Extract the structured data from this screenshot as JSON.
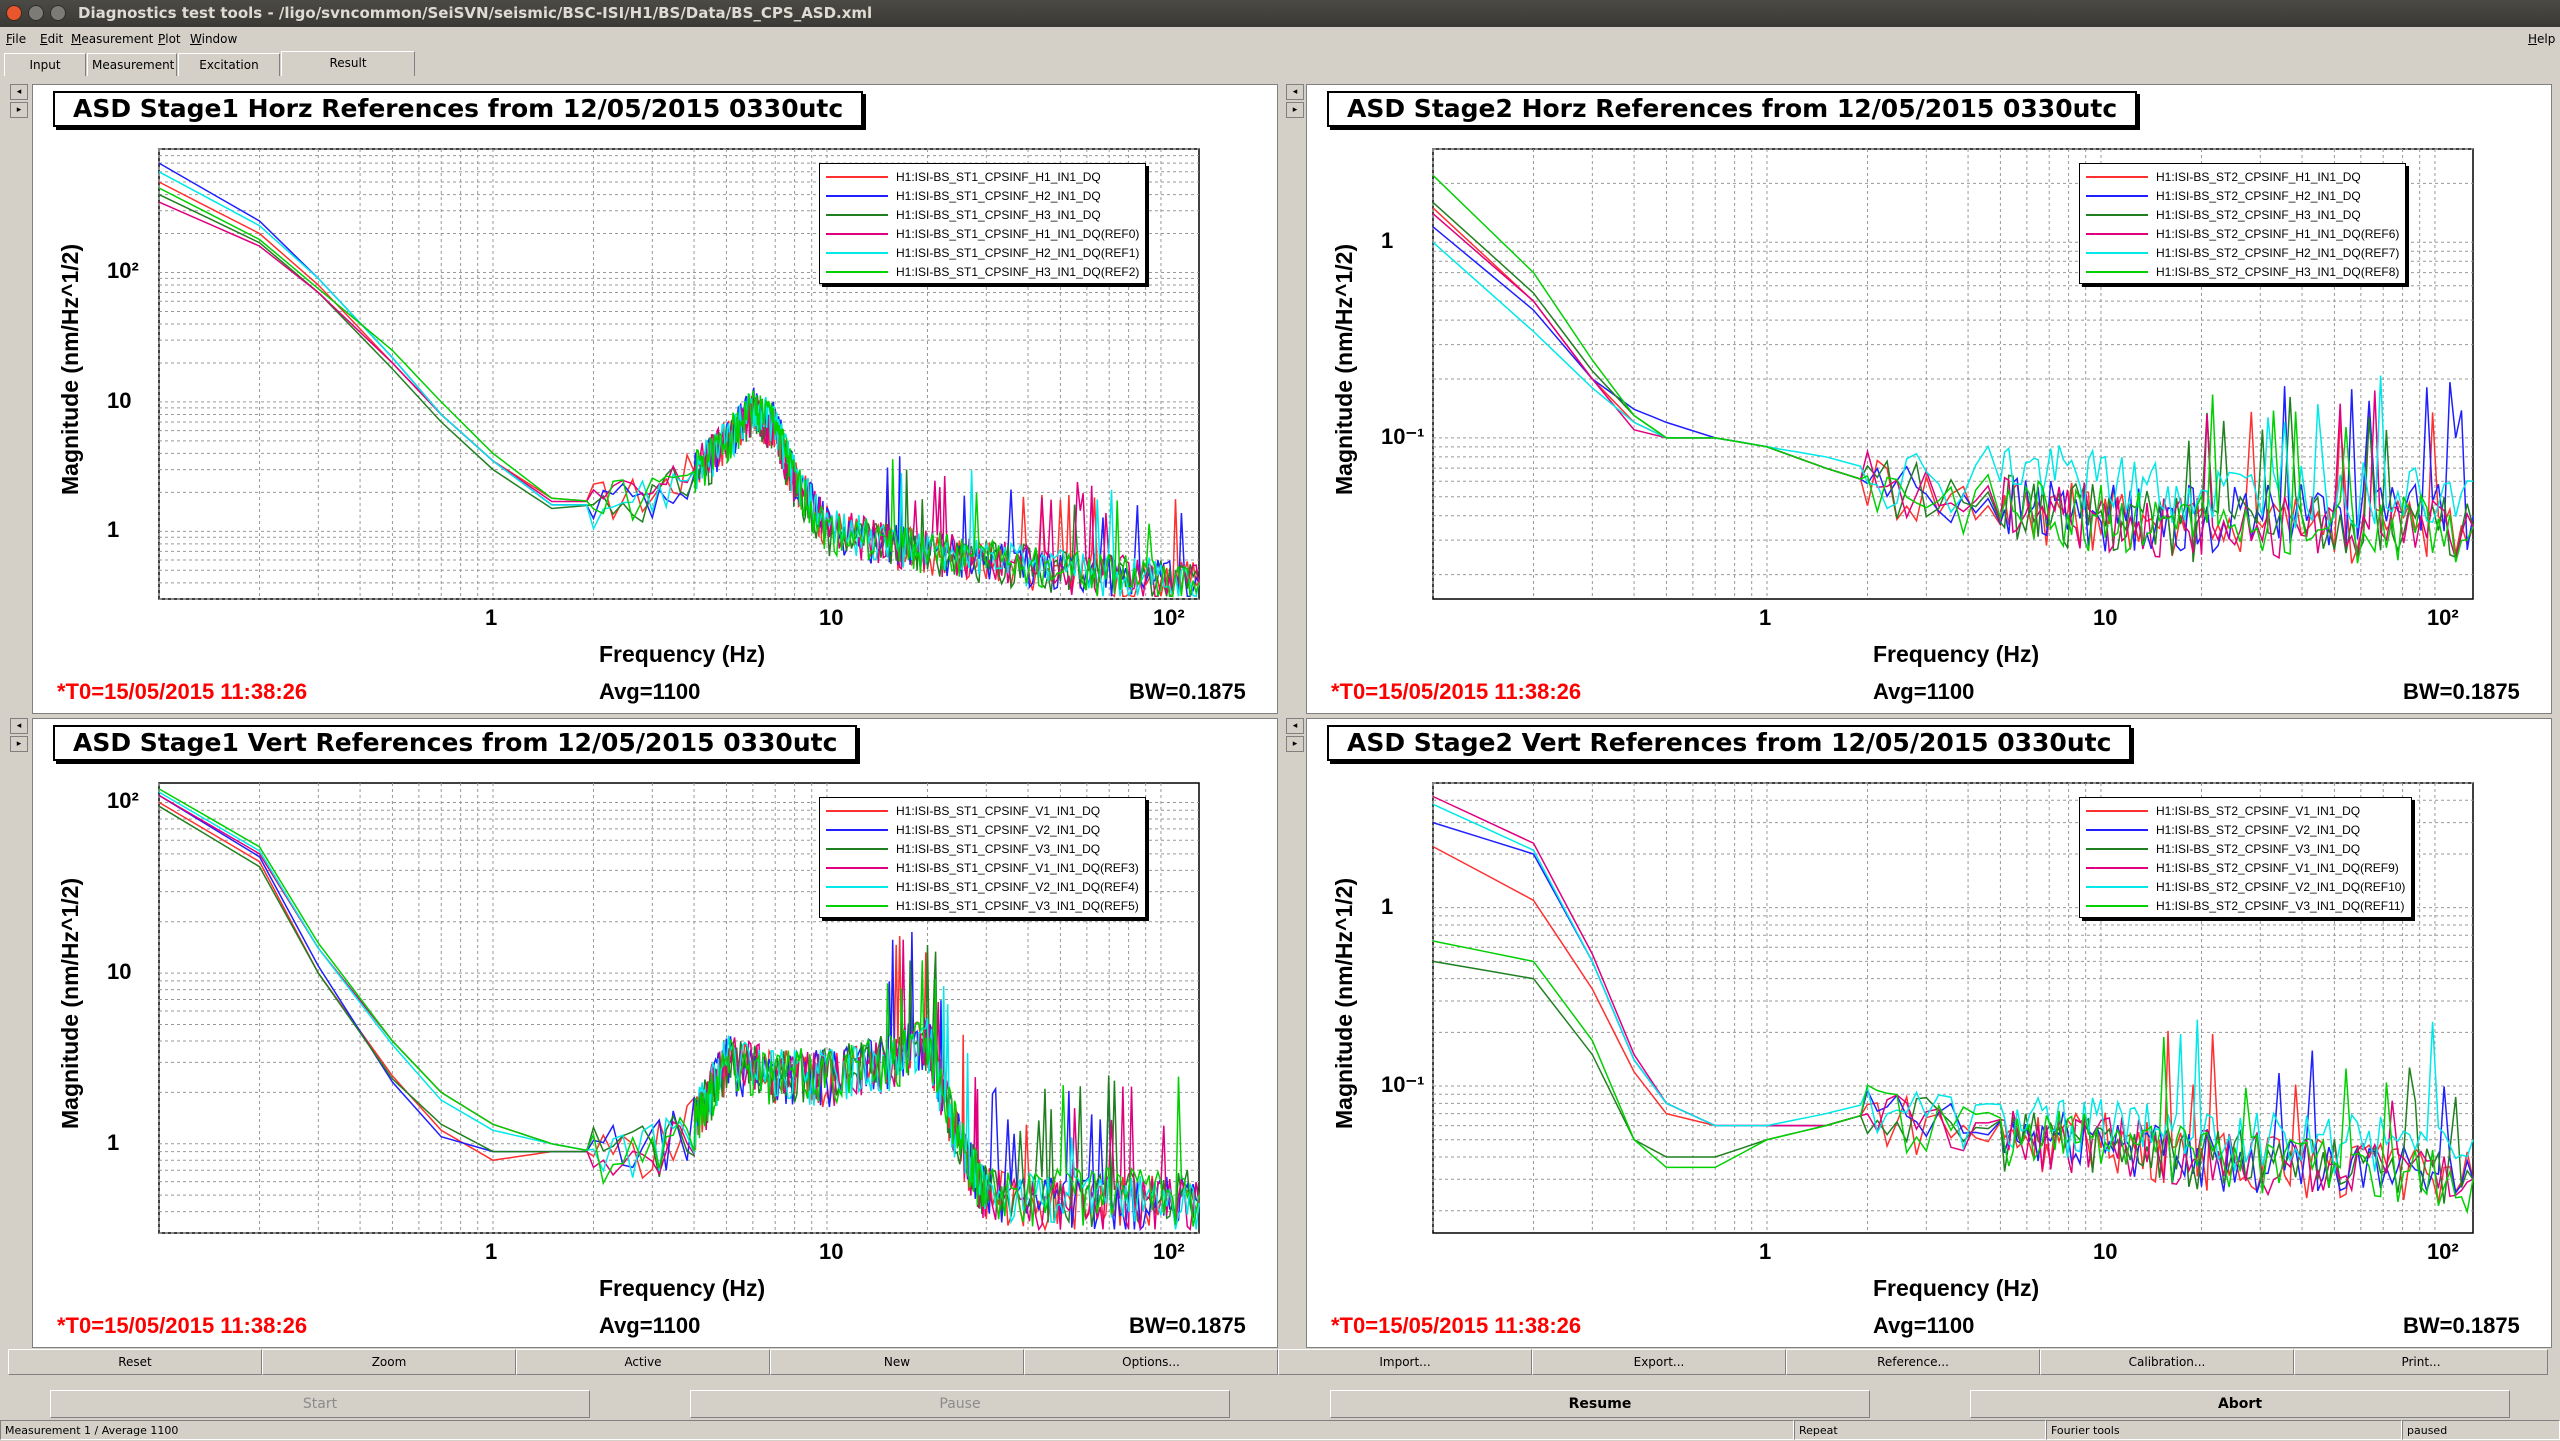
{
  "window": {
    "title": "Diagnostics test tools - /ligo/svncommon/SeiSVN/seismic/BSC-ISI/H1/BS/Data/BS_CPS_ASD.xml"
  },
  "menu": {
    "file": "File",
    "edit": "Edit",
    "measurement": "Measurement",
    "plot": "Plot",
    "window": "Window",
    "help": "Help"
  },
  "tabs": [
    {
      "label": "Input"
    },
    {
      "label": "Measurement"
    },
    {
      "label": "Excitation"
    },
    {
      "label": "Result"
    }
  ],
  "plots": [
    {
      "title": "ASD Stage1 Horz References from 12/05/2015 0330utc",
      "ylabel": "Magnitude (nm/Hz^1/2)",
      "xlabel": "Frequency (Hz)",
      "yticks": [
        "10²",
        "10",
        "1"
      ],
      "xticks": [
        "1",
        "10",
        "10²"
      ],
      "t0": "*T0=15/05/2015 11:38:26",
      "avg": "Avg=1100",
      "bw": "BW=0.1875",
      "legend": [
        "H1:ISI-BS_ST1_CPSINF_H1_IN1_DQ",
        "H1:ISI-BS_ST1_CPSINF_H2_IN1_DQ",
        "H1:ISI-BS_ST1_CPSINF_H3_IN1_DQ",
        "H1:ISI-BS_ST1_CPSINF_H1_IN1_DQ(REF0)",
        "H1:ISI-BS_ST1_CPSINF_H2_IN1_DQ(REF1)",
        "H1:ISI-BS_ST1_CPSINF_H3_IN1_DQ(REF2)"
      ]
    },
    {
      "title": "ASD Stage2 Horz References from 12/05/2015 0330utc",
      "ylabel": "Magnitude (nm/Hz^1/2)",
      "xlabel": "Frequency (Hz)",
      "yticks": [
        "1",
        "10⁻¹"
      ],
      "xticks": [
        "1",
        "10",
        "10²"
      ],
      "t0": "*T0=15/05/2015 11:38:26",
      "avg": "Avg=1100",
      "bw": "BW=0.1875",
      "legend": [
        "H1:ISI-BS_ST2_CPSINF_H1_IN1_DQ",
        "H1:ISI-BS_ST2_CPSINF_H2_IN1_DQ",
        "H1:ISI-BS_ST2_CPSINF_H3_IN1_DQ",
        "H1:ISI-BS_ST2_CPSINF_H1_IN1_DQ(REF6)",
        "H1:ISI-BS_ST2_CPSINF_H2_IN1_DQ(REF7)",
        "H1:ISI-BS_ST2_CPSINF_H3_IN1_DQ(REF8)"
      ]
    },
    {
      "title": "ASD Stage1 Vert References from 12/05/2015 0330utc",
      "ylabel": "Magnitude (nm/Hz^1/2)",
      "xlabel": "Frequency (Hz)",
      "yticks": [
        "10²",
        "10",
        "1"
      ],
      "xticks": [
        "1",
        "10",
        "10²"
      ],
      "t0": "*T0=15/05/2015 11:38:26",
      "avg": "Avg=1100",
      "bw": "BW=0.1875",
      "legend": [
        "H1:ISI-BS_ST1_CPSINF_V1_IN1_DQ",
        "H1:ISI-BS_ST1_CPSINF_V2_IN1_DQ",
        "H1:ISI-BS_ST1_CPSINF_V3_IN1_DQ",
        "H1:ISI-BS_ST1_CPSINF_V1_IN1_DQ(REF3)",
        "H1:ISI-BS_ST1_CPSINF_V2_IN1_DQ(REF4)",
        "H1:ISI-BS_ST1_CPSINF_V3_IN1_DQ(REF5)"
      ]
    },
    {
      "title": "ASD Stage2 Vert References from 12/05/2015 0330utc",
      "ylabel": "Magnitude (nm/Hz^1/2)",
      "xlabel": "Frequency (Hz)",
      "yticks": [
        "1",
        "10⁻¹"
      ],
      "xticks": [
        "1",
        "10",
        "10²"
      ],
      "t0": "*T0=15/05/2015 11:38:26",
      "avg": "Avg=1100",
      "bw": "BW=0.1875",
      "legend": [
        "H1:ISI-BS_ST2_CPSINF_V1_IN1_DQ",
        "H1:ISI-BS_ST2_CPSINF_V2_IN1_DQ",
        "H1:ISI-BS_ST2_CPSINF_V3_IN1_DQ",
        "H1:ISI-BS_ST2_CPSINF_V1_IN1_DQ(REF9)",
        "H1:ISI-BS_ST2_CPSINF_V2_IN1_DQ(REF10)",
        "H1:ISI-BS_ST2_CPSINF_V3_IN1_DQ(REF11)"
      ]
    }
  ],
  "series_colors": [
    "#ff3030",
    "#2020ff",
    "#208020",
    "#e0007f",
    "#00e8e8",
    "#00d000"
  ],
  "toolbar": {
    "reset": "Reset",
    "zoom": "Zoom",
    "active": "Active",
    "new": "New",
    "options": "Options...",
    "import": "Import...",
    "export": "Export...",
    "reference": "Reference...",
    "calibration": "Calibration...",
    "print": "Print..."
  },
  "controls": {
    "start": "Start",
    "pause": "Pause",
    "resume": "Resume",
    "abort": "Abort"
  },
  "status": {
    "measurement": "Measurement 1 / Average 1100",
    "repeat": "Repeat",
    "fourier": "Fourier tools",
    "state": "paused"
  },
  "chart_data": [
    {
      "type": "line",
      "title": "ASD Stage1 Horz References from 12/05/2015 0330utc",
      "xscale": "log",
      "yscale": "log",
      "xlim": [
        0.1,
        130
      ],
      "ylim": [
        0.3,
        900
      ],
      "xlabel": "Frequency (Hz)",
      "ylabel": "Magnitude (nm/Hz^1/2)",
      "grid": true,
      "legend": "top-right",
      "x": [
        0.1,
        0.2,
        0.3,
        0.5,
        0.7,
        1.0,
        1.5,
        2,
        3,
        4,
        5,
        6,
        7,
        8,
        10,
        15,
        20,
        30,
        50,
        80,
        130
      ],
      "series": [
        {
          "name": "H1:ISI-BS_ST1_CPSINF_H1_IN1_DQ",
          "values": [
            500,
            200,
            80,
            20,
            8,
            3.5,
            1.8,
            1.7,
            1.9,
            3,
            5,
            8,
            6,
            2.5,
            1.1,
            0.8,
            0.7,
            0.6,
            0.5,
            0.45,
            0.4
          ]
        },
        {
          "name": "H1:ISI-BS_ST1_CPSINF_H2_IN1_DQ",
          "values": [
            700,
            250,
            90,
            22,
            8,
            3.5,
            1.6,
            1.6,
            1.8,
            2.8,
            5,
            9,
            7,
            2.6,
            1.1,
            0.8,
            0.7,
            0.6,
            0.5,
            0.45,
            0.4
          ]
        },
        {
          "name": "H1:ISI-BS_ST1_CPSINF_H3_IN1_DQ",
          "values": [
            400,
            170,
            70,
            18,
            7,
            3,
            1.5,
            1.6,
            1.8,
            2.6,
            4.5,
            8,
            6,
            2.2,
            1.0,
            0.8,
            0.7,
            0.6,
            0.5,
            0.45,
            0.4
          ]
        },
        {
          "name": "H1:ISI-BS_ST1_CPSINF_H1_IN1_DQ(REF0)",
          "values": [
            350,
            160,
            70,
            20,
            8,
            3.5,
            1.7,
            1.7,
            1.9,
            3,
            5,
            8,
            6,
            2.5,
            1.1,
            0.8,
            0.7,
            0.6,
            0.5,
            0.45,
            0.4
          ]
        },
        {
          "name": "H1:ISI-BS_ST1_CPSINF_H2_IN1_DQ(REF1)",
          "values": [
            600,
            230,
            90,
            22,
            8,
            3.5,
            1.6,
            1.6,
            1.8,
            2.8,
            5,
            9,
            7,
            2.6,
            1.1,
            0.8,
            0.7,
            0.6,
            0.5,
            0.45,
            0.4
          ]
        },
        {
          "name": "H1:ISI-BS_ST1_CPSINF_H3_IN1_DQ(REF2)",
          "values": [
            450,
            180,
            75,
            25,
            10,
            4,
            1.8,
            1.7,
            1.9,
            2.8,
            5,
            9,
            7,
            2.4,
            1.0,
            0.8,
            0.7,
            0.6,
            0.5,
            0.45,
            0.4
          ]
        }
      ]
    },
    {
      "type": "line",
      "title": "ASD Stage2 Horz References from 12/05/2015 0330utc",
      "xscale": "log",
      "yscale": "log",
      "xlim": [
        0.1,
        130
      ],
      "ylim": [
        0.015,
        3
      ],
      "xlabel": "Frequency (Hz)",
      "ylabel": "Magnitude (nm/Hz^1/2)",
      "grid": true,
      "legend": "top-right",
      "x": [
        0.1,
        0.2,
        0.3,
        0.4,
        0.5,
        0.7,
        1.0,
        1.5,
        2,
        3,
        5,
        10,
        20,
        50,
        130
      ],
      "series": [
        {
          "name": "H1:ISI-BS_ST2_CPSINF_H1_IN1_DQ",
          "values": [
            1.5,
            0.5,
            0.2,
            0.12,
            0.1,
            0.1,
            0.09,
            0.07,
            0.06,
            0.05,
            0.045,
            0.04,
            0.035,
            0.035,
            0.035
          ]
        },
        {
          "name": "H1:ISI-BS_ST2_CPSINF_H2_IN1_DQ",
          "values": [
            1.2,
            0.45,
            0.2,
            0.14,
            0.12,
            0.1,
            0.09,
            0.07,
            0.06,
            0.05,
            0.045,
            0.04,
            0.04,
            0.04,
            0.04
          ]
        },
        {
          "name": "H1:ISI-BS_ST2_CPSINF_H3_IN1_DQ",
          "values": [
            1.6,
            0.55,
            0.22,
            0.13,
            0.1,
            0.1,
            0.09,
            0.07,
            0.06,
            0.05,
            0.045,
            0.04,
            0.035,
            0.035,
            0.035
          ]
        },
        {
          "name": "H1:ISI-BS_ST2_CPSINF_H1_IN1_DQ(REF6)",
          "values": [
            1.4,
            0.5,
            0.2,
            0.11,
            0.1,
            0.1,
            0.09,
            0.07,
            0.06,
            0.05,
            0.045,
            0.04,
            0.035,
            0.035,
            0.035
          ]
        },
        {
          "name": "H1:ISI-BS_ST2_CPSINF_H2_IN1_DQ(REF7)",
          "values": [
            1.0,
            0.35,
            0.18,
            0.12,
            0.1,
            0.1,
            0.09,
            0.08,
            0.07,
            0.06,
            0.07,
            0.06,
            0.05,
            0.05,
            0.06
          ]
        },
        {
          "name": "H1:ISI-BS_ST2_CPSINF_H3_IN1_DQ(REF8)",
          "values": [
            2.2,
            0.7,
            0.25,
            0.13,
            0.1,
            0.1,
            0.09,
            0.07,
            0.06,
            0.05,
            0.045,
            0.04,
            0.035,
            0.035,
            0.035
          ]
        }
      ]
    },
    {
      "type": "line",
      "title": "ASD Stage1 Vert References from 12/05/2015 0330utc",
      "xscale": "log",
      "yscale": "log",
      "xlim": [
        0.1,
        130
      ],
      "ylim": [
        0.3,
        130
      ],
      "xlabel": "Frequency (Hz)",
      "ylabel": "Magnitude (nm/Hz^1/2)",
      "grid": true,
      "legend": "top-right",
      "x": [
        0.1,
        0.2,
        0.3,
        0.5,
        0.7,
        1.0,
        1.5,
        2,
        3,
        4,
        5,
        7,
        10,
        15,
        20,
        25,
        30,
        50,
        80,
        130
      ],
      "series": [
        {
          "name": "H1:ISI-BS_ST1_CPSINF_V1_IN1_DQ",
          "values": [
            100,
            45,
            10,
            2.5,
            1.2,
            0.8,
            0.9,
            0.9,
            0.9,
            1.3,
            3,
            2.5,
            2.5,
            3,
            4,
            1,
            0.5,
            0.45,
            0.45,
            0.45
          ]
        },
        {
          "name": "H1:ISI-BS_ST1_CPSINF_V2_IN1_DQ",
          "values": [
            110,
            48,
            11,
            2.3,
            1.1,
            0.9,
            0.9,
            0.9,
            0.9,
            1.3,
            3,
            2.5,
            2.5,
            3,
            4,
            1,
            0.5,
            0.45,
            0.45,
            0.45
          ]
        },
        {
          "name": "H1:ISI-BS_ST1_CPSINF_V3_IN1_DQ",
          "values": [
            95,
            42,
            10,
            2.4,
            1.3,
            0.9,
            0.9,
            0.9,
            0.9,
            1.3,
            3,
            2.5,
            2.5,
            3,
            4,
            1,
            0.5,
            0.5,
            0.5,
            0.5
          ]
        },
        {
          "name": "H1:ISI-BS_ST1_CPSINF_V1_IN1_DQ(REF3)",
          "values": [
            110,
            50,
            14,
            4,
            2,
            1.3,
            1.0,
            0.9,
            0.9,
            1.3,
            3,
            2.5,
            2.5,
            3,
            4,
            1,
            0.5,
            0.45,
            0.45,
            0.45
          ]
        },
        {
          "name": "H1:ISI-BS_ST1_CPSINF_V2_IN1_DQ(REF4)",
          "values": [
            115,
            52,
            14,
            3.8,
            1.8,
            1.2,
            1.0,
            0.9,
            0.9,
            1.3,
            3,
            2.5,
            2.5,
            3,
            4,
            1,
            0.5,
            0.45,
            0.45,
            0.45
          ]
        },
        {
          "name": "H1:ISI-BS_ST1_CPSINF_V3_IN1_DQ(REF5)",
          "values": [
            120,
            55,
            15,
            4,
            2,
            1.3,
            1.0,
            0.9,
            0.9,
            1.3,
            3,
            2.5,
            2.5,
            3,
            4,
            1,
            0.5,
            0.5,
            0.5,
            0.5
          ]
        }
      ]
    },
    {
      "type": "line",
      "title": "ASD Stage2 Vert References from 12/05/2015 0330utc",
      "xscale": "log",
      "yscale": "log",
      "xlim": [
        0.1,
        130
      ],
      "ylim": [
        0.015,
        5
      ],
      "xlabel": "Frequency (Hz)",
      "ylabel": "Magnitude (nm/Hz^1/2)",
      "grid": true,
      "legend": "top-right",
      "x": [
        0.1,
        0.2,
        0.3,
        0.4,
        0.5,
        0.7,
        1.0,
        1.5,
        2,
        3,
        5,
        10,
        20,
        50,
        130
      ],
      "series": [
        {
          "name": "H1:ISI-BS_ST2_CPSINF_V1_IN1_DQ",
          "values": [
            2.2,
            1.1,
            0.35,
            0.12,
            0.07,
            0.06,
            0.06,
            0.06,
            0.07,
            0.06,
            0.05,
            0.05,
            0.04,
            0.035,
            0.03
          ]
        },
        {
          "name": "H1:ISI-BS_ST2_CPSINF_V2_IN1_DQ",
          "values": [
            3,
            2,
            0.5,
            0.14,
            0.08,
            0.06,
            0.06,
            0.06,
            0.07,
            0.06,
            0.05,
            0.05,
            0.04,
            0.035,
            0.03
          ]
        },
        {
          "name": "H1:ISI-BS_ST2_CPSINF_V3_IN1_DQ",
          "values": [
            0.5,
            0.4,
            0.15,
            0.05,
            0.04,
            0.04,
            0.05,
            0.06,
            0.07,
            0.06,
            0.05,
            0.05,
            0.04,
            0.035,
            0.03
          ]
        },
        {
          "name": "H1:ISI-BS_ST2_CPSINF_V1_IN1_DQ(REF9)",
          "values": [
            4.2,
            2.3,
            0.55,
            0.15,
            0.08,
            0.06,
            0.06,
            0.06,
            0.07,
            0.06,
            0.05,
            0.05,
            0.04,
            0.035,
            0.03
          ]
        },
        {
          "name": "H1:ISI-BS_ST2_CPSINF_V2_IN1_DQ(REF10)",
          "values": [
            3.8,
            2.1,
            0.5,
            0.14,
            0.08,
            0.06,
            0.06,
            0.07,
            0.08,
            0.07,
            0.06,
            0.06,
            0.05,
            0.05,
            0.05
          ]
        },
        {
          "name": "H1:ISI-BS_ST2_CPSINF_V3_IN1_DQ(REF11)",
          "values": [
            0.65,
            0.5,
            0.18,
            0.05,
            0.035,
            0.035,
            0.05,
            0.06,
            0.07,
            0.06,
            0.05,
            0.05,
            0.04,
            0.035,
            0.03
          ]
        }
      ]
    }
  ]
}
